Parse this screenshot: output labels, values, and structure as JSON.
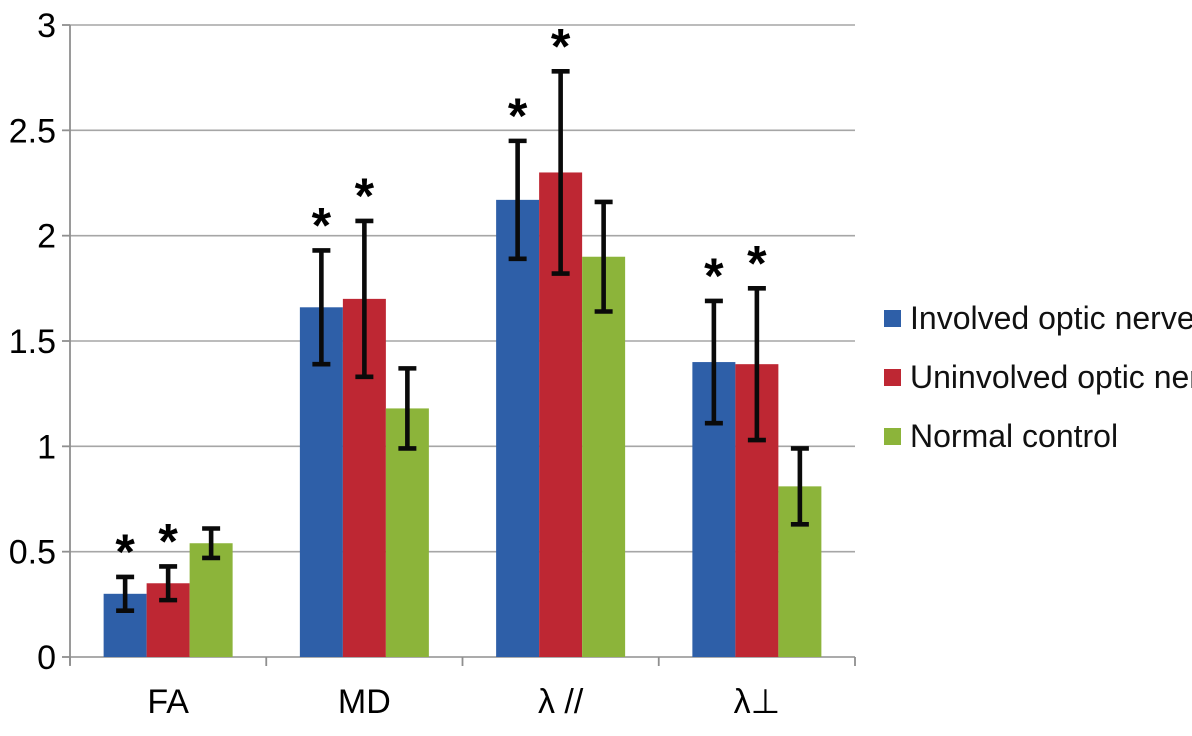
{
  "chart_data": {
    "type": "bar",
    "title": "",
    "xlabel": "",
    "ylabel": "",
    "categories": [
      "FA",
      "MD",
      "λ //",
      "λ⊥"
    ],
    "series": [
      {
        "name": "Involved optic nerve",
        "color": "#2E5FA8",
        "values": [
          0.3,
          1.66,
          2.17,
          1.4
        ],
        "errors": [
          0.08,
          0.27,
          0.28,
          0.29
        ],
        "significant": [
          true,
          true,
          true,
          true
        ]
      },
      {
        "name": "Uninvolved optic nerve",
        "color": "#BE2733",
        "values": [
          0.35,
          1.7,
          2.3,
          1.39
        ],
        "errors": [
          0.08,
          0.37,
          0.48,
          0.36
        ],
        "significant": [
          true,
          true,
          true,
          true
        ]
      },
      {
        "name": "Normal control",
        "color": "#8CB43A",
        "values": [
          0.54,
          1.18,
          1.9,
          0.81
        ],
        "errors": [
          0.07,
          0.19,
          0.26,
          0.18
        ],
        "significant": [
          false,
          false,
          false,
          false
        ]
      }
    ],
    "ylim": [
      0,
      3
    ],
    "yticks": [
      "0",
      "0.5",
      "1",
      "1.5",
      "2",
      "2.5",
      "3"
    ],
    "grid": true,
    "legend_position": "right",
    "significance_marker": "*",
    "colors": {
      "grid_line": "#a6a6a6",
      "axis_line": "#8f8f8f",
      "error_bar": "#0a0a0a",
      "text": "#000000"
    }
  }
}
